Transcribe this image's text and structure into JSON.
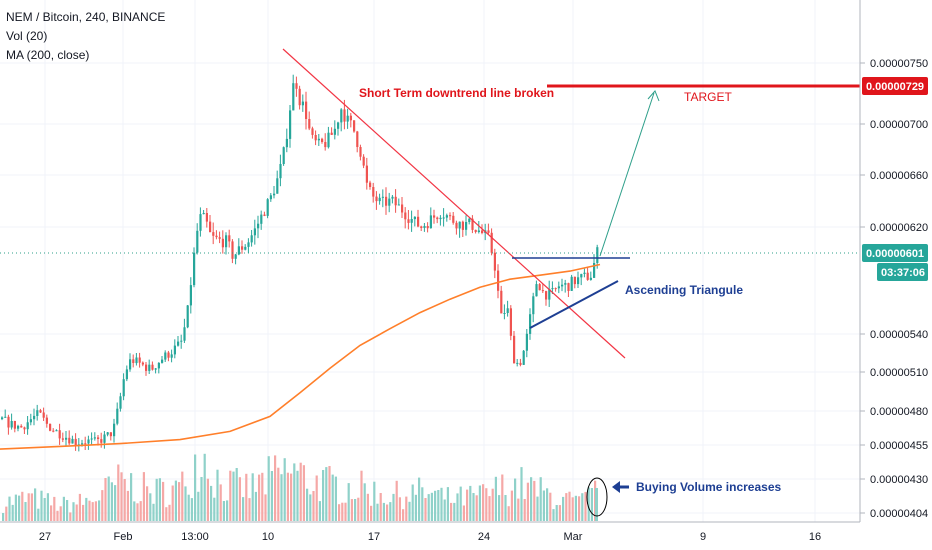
{
  "legend": {
    "title": "NEM / Bitcoin, 240, BINANCE",
    "vol": "Vol (20)",
    "ma": "MA (200, close)"
  },
  "colors": {
    "up": "#26a69a",
    "down": "#ef5350",
    "ma": "#ff7f2a",
    "downtrend": "#f23645",
    "target": "#e0151b",
    "triangle": "#1e3f93",
    "arrow": "#2e9f8a",
    "price_line": "#2e9f8a",
    "annotation_red": "#e0151b",
    "annotation_blue": "#1e3f93"
  },
  "annotations": {
    "downtrend_text": "Short Term downtrend line broken",
    "target_text": "TARGET",
    "triangle_text": "Ascending Triangule",
    "volume_text": "Buying Volume increases"
  },
  "price_tags": {
    "target": "0.00000729",
    "current": "0.00000601",
    "countdown": "03:37:06"
  },
  "chart_data": {
    "type": "candlestick",
    "title": "NEM / Bitcoin, 240, BINANCE",
    "y_ticks": [
      "0.00000750",
      "0.00000700",
      "0.00000660",
      "0.00000620",
      "0.00000540",
      "0.00000510",
      "0.00000480",
      "0.00000455",
      "0.00000430",
      "0.00000404"
    ],
    "y_tick_values": [
      7.5e-06,
      7e-06,
      6.6e-06,
      6.2e-06,
      5.4e-06,
      5.1e-06,
      4.8e-06,
      4.55e-06,
      4.3e-06,
      4.04e-06
    ],
    "x_ticks": [
      "27",
      "Feb",
      "13:00",
      "10",
      "17",
      "24",
      "Mar",
      "9",
      "16"
    ],
    "ylim": [
      4.04e-06,
      7.5e-06
    ],
    "target_price": 7.29e-06,
    "current_price": 6.01e-06,
    "close_path": [
      [
        0,
        4.74e-06
      ],
      [
        10,
        4.7e-06
      ],
      [
        20,
        4.68e-06
      ],
      [
        30,
        4.74e-06
      ],
      [
        38,
        4.78e-06
      ],
      [
        46,
        4.7e-06
      ],
      [
        55,
        4.65e-06
      ],
      [
        65,
        4.61e-06
      ],
      [
        75,
        4.57e-06
      ],
      [
        85,
        4.58e-06
      ],
      [
        95,
        4.57e-06
      ],
      [
        105,
        4.61e-06
      ],
      [
        112,
        4.65e-06
      ],
      [
        118,
        4.85e-06
      ],
      [
        124,
        5.1e-06
      ],
      [
        130,
        5.2e-06
      ],
      [
        140,
        5.16e-06
      ],
      [
        150,
        5.12e-06
      ],
      [
        160,
        5.2e-06
      ],
      [
        170,
        5.26e-06
      ],
      [
        180,
        5.33e-06
      ],
      [
        186,
        5.53e-06
      ],
      [
        192,
        5.93e-06
      ],
      [
        198,
        6.27e-06
      ],
      [
        204,
        6.26e-06
      ],
      [
        210,
        6.12e-06
      ],
      [
        218,
        6.1e-06
      ],
      [
        226,
        6.09e-06
      ],
      [
        232,
        5.98e-06
      ],
      [
        238,
        6.03e-06
      ],
      [
        246,
        6.08e-06
      ],
      [
        254,
        6.18e-06
      ],
      [
        262,
        6.31e-06
      ],
      [
        270,
        6.43e-06
      ],
      [
        278,
        6.6e-06
      ],
      [
        284,
        6.82e-06
      ],
      [
        290,
        7.2e-06
      ],
      [
        294,
        7.4e-06
      ],
      [
        298,
        7.21e-06
      ],
      [
        304,
        7.12e-06
      ],
      [
        310,
        6.88e-06
      ],
      [
        318,
        6.83e-06
      ],
      [
        326,
        6.86e-06
      ],
      [
        334,
        6.96e-06
      ],
      [
        340,
        7.13e-06
      ],
      [
        346,
        7.03e-06
      ],
      [
        352,
        6.97e-06
      ],
      [
        360,
        6.77e-06
      ],
      [
        366,
        6.51e-06
      ],
      [
        372,
        6.43e-06
      ],
      [
        380,
        6.38e-06
      ],
      [
        390,
        6.4e-06
      ],
      [
        400,
        6.34e-06
      ],
      [
        410,
        6.26e-06
      ],
      [
        420,
        6.2e-06
      ],
      [
        430,
        6.26e-06
      ],
      [
        440,
        6.32e-06
      ],
      [
        450,
        6.26e-06
      ],
      [
        460,
        6.22e-06
      ],
      [
        470,
        6.22e-06
      ],
      [
        480,
        6.16e-06
      ],
      [
        488,
        6.11e-06
      ],
      [
        494,
        5.9e-06
      ],
      [
        500,
        5.52e-06
      ],
      [
        506,
        5.61e-06
      ],
      [
        512,
        5.22e-06
      ],
      [
        518,
        5.15e-06
      ],
      [
        524,
        5.3e-06
      ],
      [
        530,
        5.56e-06
      ],
      [
        536,
        5.81e-06
      ],
      [
        542,
        5.71e-06
      ],
      [
        550,
        5.69e-06
      ],
      [
        558,
        5.76e-06
      ],
      [
        566,
        5.76e-06
      ],
      [
        574,
        5.8e-06
      ],
      [
        582,
        5.82e-06
      ],
      [
        590,
        5.84e-06
      ],
      [
        596,
        6.01e-06
      ]
    ],
    "ma_path": [
      [
        0,
        4.52e-06
      ],
      [
        60,
        4.54e-06
      ],
      [
        120,
        4.56e-06
      ],
      [
        180,
        4.59e-06
      ],
      [
        230,
        4.65e-06
      ],
      [
        270,
        4.76e-06
      ],
      [
        300,
        4.94e-06
      ],
      [
        330,
        5.13e-06
      ],
      [
        360,
        5.31e-06
      ],
      [
        390,
        5.44e-06
      ],
      [
        420,
        5.56e-06
      ],
      [
        450,
        5.66e-06
      ],
      [
        480,
        5.75e-06
      ],
      [
        510,
        5.81e-06
      ],
      [
        540,
        5.84e-06
      ],
      [
        570,
        5.87e-06
      ],
      [
        600,
        5.92e-06
      ]
    ],
    "volume_path": [
      [
        0,
        0.25
      ],
      [
        30,
        0.32
      ],
      [
        60,
        0.22
      ],
      [
        90,
        0.28
      ],
      [
        120,
        0.55
      ],
      [
        150,
        0.4
      ],
      [
        180,
        0.45
      ],
      [
        200,
        0.95
      ],
      [
        220,
        0.5
      ],
      [
        250,
        0.45
      ],
      [
        270,
        0.6
      ],
      [
        290,
        0.7
      ],
      [
        310,
        0.55
      ],
      [
        330,
        0.5
      ],
      [
        360,
        0.45
      ],
      [
        390,
        0.35
      ],
      [
        420,
        0.4
      ],
      [
        450,
        0.3
      ],
      [
        480,
        0.35
      ],
      [
        500,
        0.45
      ],
      [
        520,
        0.5
      ],
      [
        540,
        0.4
      ],
      [
        560,
        0.3
      ],
      [
        580,
        0.25
      ],
      [
        596,
        0.42
      ]
    ]
  }
}
